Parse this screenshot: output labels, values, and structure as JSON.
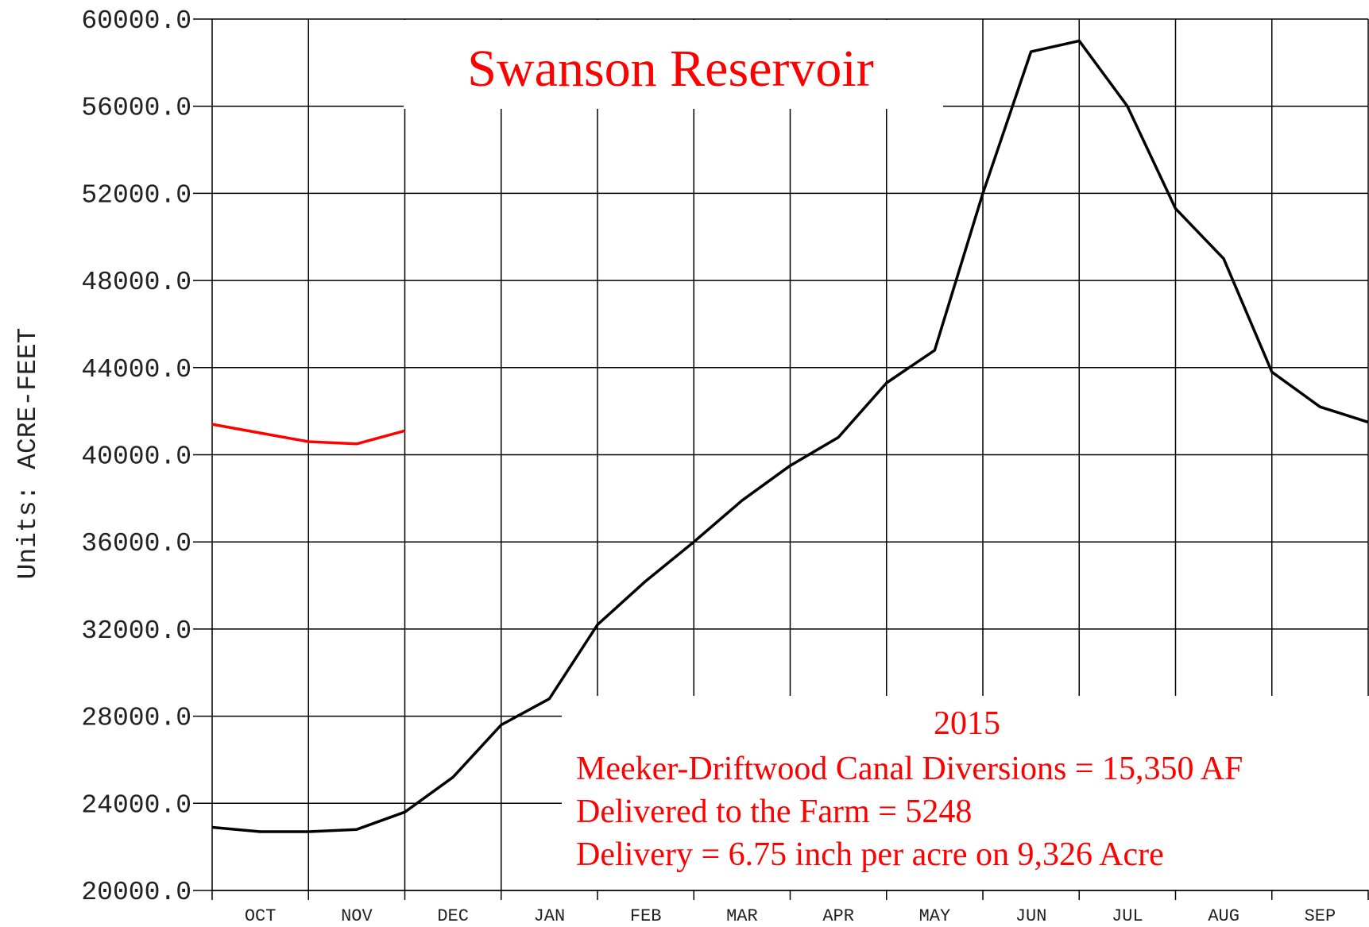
{
  "chart_data": {
    "type": "line",
    "title": "Swanson Reservoir",
    "y_label": "Units: ACRE-FEET",
    "categories": [
      null,
      "OCT",
      null,
      "NOV",
      null,
      "DEC",
      null,
      "JAN",
      null,
      "FEB",
      null,
      "MAR",
      null,
      "APR",
      null,
      "MAY",
      null,
      "JUN",
      null,
      "JUL",
      null,
      "AUG",
      null,
      "SEP",
      null
    ],
    "series": [
      {
        "name": "2015",
        "color": "#000000",
        "values": [
          22900,
          22700,
          22700,
          22800,
          23600,
          25200,
          27600,
          28800,
          32200,
          34200,
          36000,
          37900,
          39500,
          40800,
          43300,
          44800,
          52000,
          58500,
          59000,
          56000,
          51300,
          49000,
          43800,
          42200,
          41500
        ]
      },
      {
        "color": "#ff0000",
        "values": [
          41400,
          41000,
          40600,
          40500,
          41100,
          null,
          null,
          null,
          null,
          null,
          null,
          null,
          null,
          null,
          null,
          null,
          null,
          null,
          null,
          null,
          null,
          null,
          null,
          null,
          null
        ]
      }
    ],
    "ylim": [
      20000,
      60000
    ],
    "yticks": [
      {
        "value": 20000,
        "label": "20000.0"
      },
      {
        "value": 24000,
        "label": "24000.0"
      },
      {
        "value": 28000,
        "label": "28000.0"
      },
      {
        "value": 32000,
        "label": "32000.0"
      },
      {
        "value": 36000,
        "label": "36000.0"
      },
      {
        "value": 40000,
        "label": "40000.0"
      },
      {
        "value": 44000,
        "label": "44000.0"
      },
      {
        "value": 48000,
        "label": "48000.0"
      },
      {
        "value": 52000,
        "label": "52000.0"
      },
      {
        "value": 56000,
        "label": "56000.0"
      },
      {
        "value": 60000,
        "label": "60000.0"
      }
    ],
    "grid": true,
    "annotations": [
      "Meeker-Driftwood Canal Diversions = 15,350 AF",
      "Delivered to the Farm = 5248",
      "Delivery = 6.75 inch per acre on 9,326 Acre"
    ]
  }
}
